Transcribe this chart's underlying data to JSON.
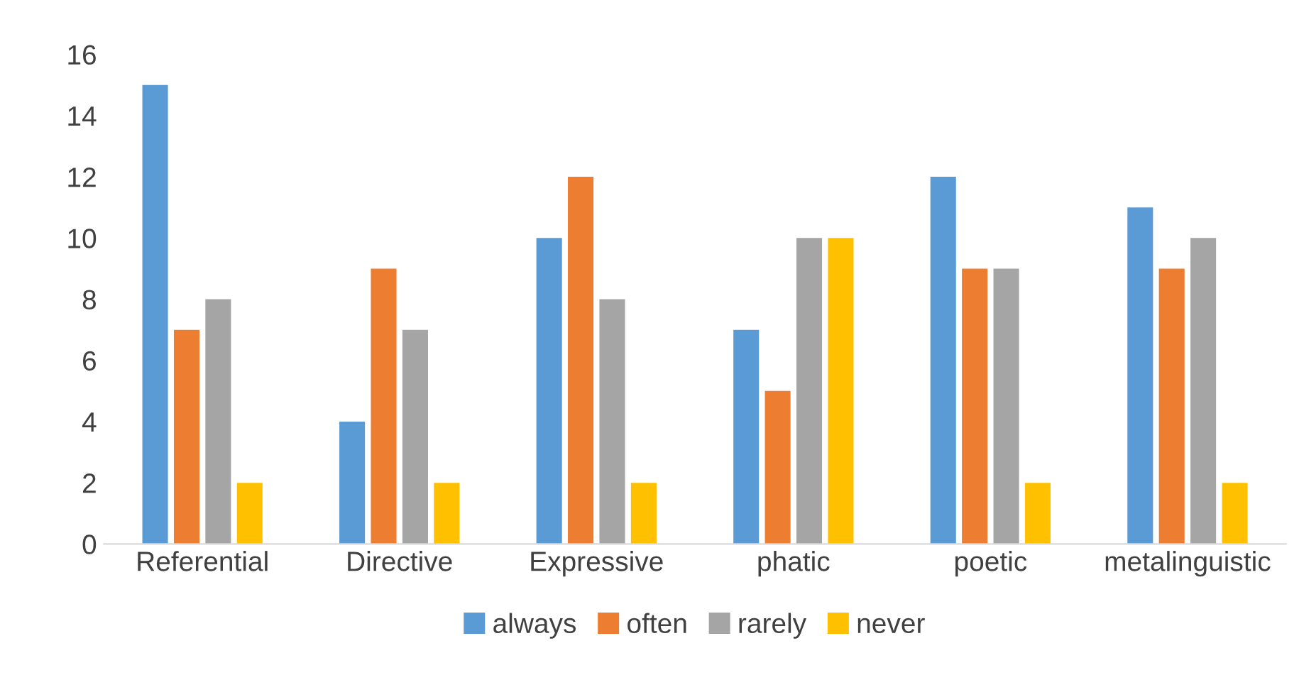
{
  "chart_data": {
    "type": "bar",
    "categories": [
      "Referential",
      "Directive",
      "Expressive",
      "phatic",
      "poetic",
      "metalinguistic"
    ],
    "series": [
      {
        "name": "always",
        "color": "#5b9bd5",
        "values": [
          15,
          4,
          10,
          7,
          12,
          11
        ]
      },
      {
        "name": "often",
        "color": "#ed7d31",
        "values": [
          7,
          9,
          12,
          5,
          9,
          9
        ]
      },
      {
        "name": "rarely",
        "color": "#a5a5a5",
        "values": [
          8,
          7,
          8,
          10,
          9,
          10
        ]
      },
      {
        "name": "never",
        "color": "#ffc000",
        "values": [
          2,
          2,
          2,
          10,
          2,
          2
        ]
      }
    ],
    "ylim": [
      0,
      16
    ],
    "yticks": [
      0,
      2,
      4,
      6,
      8,
      10,
      12,
      14,
      16
    ],
    "grid": false,
    "legend": "bottom"
  }
}
